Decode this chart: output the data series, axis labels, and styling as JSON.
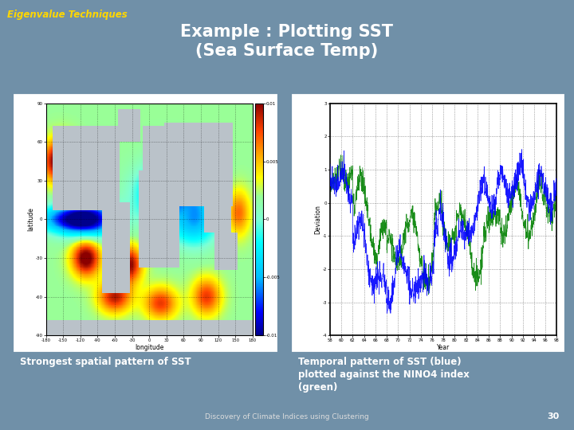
{
  "title_main": "Example : Plotting SST\n(Sea Surface Temp)",
  "title_top_left": "Eigenvalue Techniques",
  "title_top_left_color": "#FFD700",
  "title_main_color": "#FFFFFF",
  "bg_color": "#7090A8",
  "caption_left": "Strongest spatial pattern of SST",
  "caption_right_lines": [
    "Temporal pattern of SST (blue)",
    "plotted against the NINO4 index",
    "(green)"
  ],
  "caption_left_color": "#FFFFFF",
  "caption_right_color": "#FFFFFF",
  "footer": "Discovery of Climate Indices using Clustering",
  "footer_color": "#DDDDDD",
  "page_number": "30",
  "page_number_color": "#FFFFFF",
  "map_xlabel": "longitude",
  "map_ylabel": "latitude",
  "plot_xlabel": "Year",
  "plot_ylabel": "Deviation",
  "plot_ylim": [
    -4,
    3
  ],
  "plot_xlim": [
    58,
    98
  ],
  "colorbar_ticks": [
    -0.01,
    -0.005,
    0,
    0.005,
    0.01
  ],
  "colorbar_labels": [
    "-0.01",
    "-0.005",
    "0",
    "0.005",
    "0.01"
  ]
}
